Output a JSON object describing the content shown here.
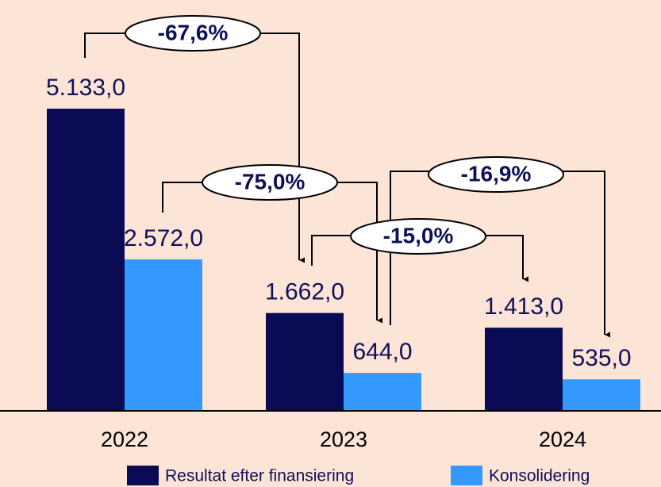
{
  "chart_data": {
    "type": "bar",
    "categories": [
      "2022",
      "2023",
      "2024"
    ],
    "series": [
      {
        "name": "Resultat efter finansiering",
        "color": "#0a0a55",
        "values": [
          5133,
          1662,
          1413
        ],
        "value_labels": [
          "5.133,0",
          "1.662,0",
          "1.413,0"
        ]
      },
      {
        "name": "Konsolidering",
        "color": "#3399ff",
        "values": [
          2572,
          644,
          535
        ],
        "value_labels": [
          "2.572,0",
          "644,0",
          "535,0"
        ]
      }
    ],
    "annotations": [
      "-67,6%",
      "-75,0%",
      "-15,0%",
      "-16,9%"
    ]
  }
}
